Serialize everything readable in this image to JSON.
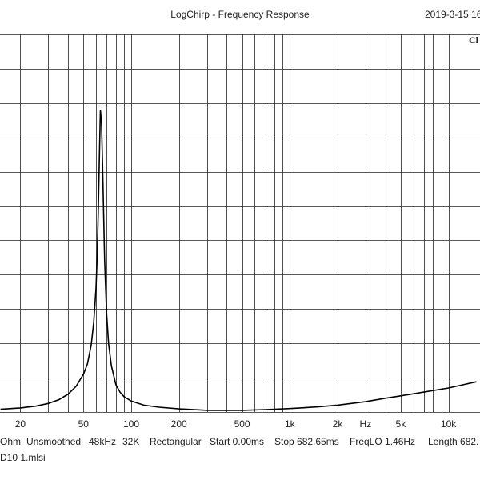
{
  "header": {
    "title": "LogChirp - Frequency Response",
    "date": "2019-3-15 16",
    "channel": "Cl"
  },
  "footer": {
    "settings": [
      "Ohm",
      "Unsmoothed",
      "48kHz",
      "32K",
      "Rectangular",
      "Start 0.00ms",
      "Stop 682.65ms",
      "FreqLO 1.46Hz",
      "Length 682."
    ],
    "filename": "D10 1.mlsi"
  },
  "colors": {
    "grid": "#222222",
    "curve": "#000000",
    "background": "#ffffff"
  },
  "chart_data": {
    "type": "line",
    "title": "LogChirp - Frequency Response",
    "xscale": "log",
    "xlim": [
      14.9,
      15800
    ],
    "ylim": [
      0,
      11
    ],
    "x_ticks": [
      {
        "value": 20,
        "label": "20"
      },
      {
        "value": 50,
        "label": "50"
      },
      {
        "value": 100,
        "label": "100"
      },
      {
        "value": 200,
        "label": "200"
      },
      {
        "value": 500,
        "label": "500"
      },
      {
        "value": 1000,
        "label": "1k"
      },
      {
        "value": 2000,
        "label": "2k"
      },
      {
        "value": 3000,
        "label": "Hz"
      },
      {
        "value": 5000,
        "label": "5k"
      },
      {
        "value": 10000,
        "label": "10k"
      }
    ],
    "y_gridlines": 11,
    "grid": true,
    "series": [
      {
        "x": [
          15,
          20,
          25,
          30,
          35,
          40,
          45,
          50,
          53,
          56,
          58,
          60,
          61,
          62,
          63,
          64,
          65,
          66,
          67,
          68,
          70,
          72,
          75,
          80,
          85,
          90,
          100,
          120,
          150,
          200,
          300,
          500,
          700,
          1000,
          1500,
          2000,
          3000,
          4000,
          5000,
          7000,
          10000,
          12000,
          15000
        ],
        "y": [
          0.08,
          0.12,
          0.17,
          0.25,
          0.36,
          0.52,
          0.75,
          1.1,
          1.4,
          1.95,
          2.6,
          3.6,
          4.5,
          5.8,
          7.4,
          8.8,
          8.4,
          7.2,
          5.8,
          4.4,
          2.85,
          2.0,
          1.35,
          0.8,
          0.58,
          0.45,
          0.32,
          0.2,
          0.14,
          0.09,
          0.05,
          0.05,
          0.07,
          0.1,
          0.15,
          0.2,
          0.3,
          0.4,
          0.47,
          0.58,
          0.7,
          0.78,
          0.88
        ]
      }
    ]
  }
}
